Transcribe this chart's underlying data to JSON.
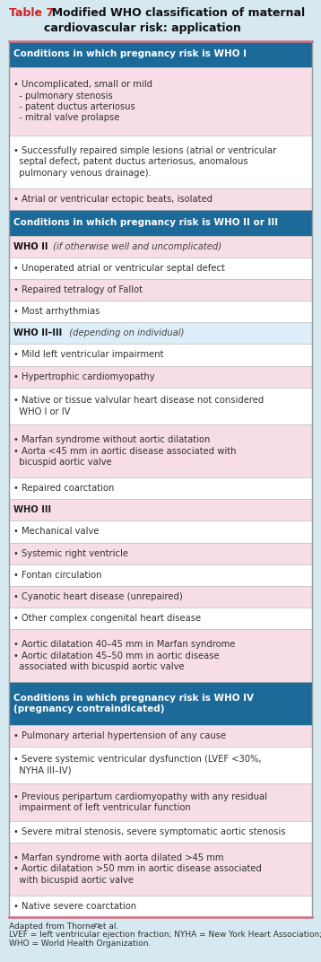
{
  "bg_color": "#d6e8f0",
  "title_prefix": "Table 7",
  "title_rest": "  Modified WHO classification of maternal\ncardiovascular risk: application",
  "table_border_color": "#c0c0c0",
  "top_bottom_line_color": "#d07080",
  "rows": [
    {
      "type": "section_header",
      "text": "Conditions in which pregnancy risk is WHO I",
      "bg": "#1b6a9a",
      "fg": "#ffffff",
      "lines": 1
    },
    {
      "type": "cell",
      "text": "• Uncomplicated, small or mild\n  - pulmonary stenosis\n  - patent ductus arteriosus\n  - mitral valve prolapse",
      "bg": "#f7dde6",
      "fg": "#333333",
      "lines": 4
    },
    {
      "type": "cell",
      "text": "• Successfully repaired simple lesions (atrial or ventricular\n  septal defect, patent ductus arteriosus, anomalous\n  pulmonary venous drainage).",
      "bg": "#ffffff",
      "fg": "#333333",
      "lines": 3
    },
    {
      "type": "cell",
      "text": "• Atrial or ventricular ectopic beats, isolated",
      "bg": "#f7dde6",
      "fg": "#333333",
      "lines": 1
    },
    {
      "type": "section_header",
      "text": "Conditions in which pregnancy risk is WHO II or III",
      "bg": "#1b6a9a",
      "fg": "#ffffff",
      "lines": 1
    },
    {
      "type": "mixed",
      "bold": "WHO II",
      "italic": " (if otherwise well and uncomplicated)",
      "bg": "#f7dde6",
      "fg": "#333333",
      "lines": 1
    },
    {
      "type": "cell",
      "text": "• Unoperated atrial or ventricular septal defect",
      "bg": "#ffffff",
      "fg": "#333333",
      "lines": 1
    },
    {
      "type": "cell",
      "text": "• Repaired tetralogy of Fallot",
      "bg": "#f7dde6",
      "fg": "#333333",
      "lines": 1
    },
    {
      "type": "cell",
      "text": "• Most arrhythmias",
      "bg": "#ffffff",
      "fg": "#333333",
      "lines": 1
    },
    {
      "type": "mixed",
      "bold": "WHO II–III",
      "italic": "  (depending on individual)",
      "bg": "#ddeef8",
      "fg": "#333333",
      "lines": 1
    },
    {
      "type": "cell",
      "text": "• Mild left ventricular impairment",
      "bg": "#ffffff",
      "fg": "#333333",
      "lines": 1
    },
    {
      "type": "cell",
      "text": "• Hypertrophic cardiomyopathy",
      "bg": "#f7dde6",
      "fg": "#333333",
      "lines": 1
    },
    {
      "type": "cell",
      "text": "• Native or tissue valvular heart disease not considered\n  WHO I or IV",
      "bg": "#ffffff",
      "fg": "#333333",
      "lines": 2
    },
    {
      "type": "cell",
      "text": "• Marfan syndrome without aortic dilatation\n• Aorta <45 mm in aortic disease associated with\n  bicuspid aortic valve",
      "bg": "#f7dde6",
      "fg": "#333333",
      "lines": 3
    },
    {
      "type": "cell",
      "text": "• Repaired coarctation",
      "bg": "#ffffff",
      "fg": "#333333",
      "lines": 1
    },
    {
      "type": "subheader",
      "text": "WHO III",
      "bg": "#f7dde6",
      "fg": "#333333",
      "lines": 1
    },
    {
      "type": "cell",
      "text": "• Mechanical valve",
      "bg": "#ffffff",
      "fg": "#333333",
      "lines": 1
    },
    {
      "type": "cell",
      "text": "• Systemic right ventricle",
      "bg": "#f7dde6",
      "fg": "#333333",
      "lines": 1
    },
    {
      "type": "cell",
      "text": "• Fontan circulation",
      "bg": "#ffffff",
      "fg": "#333333",
      "lines": 1
    },
    {
      "type": "cell",
      "text": "• Cyanotic heart disease (unrepaired)",
      "bg": "#f7dde6",
      "fg": "#333333",
      "lines": 1
    },
    {
      "type": "cell",
      "text": "• Other complex congenital heart disease",
      "bg": "#ffffff",
      "fg": "#333333",
      "lines": 1
    },
    {
      "type": "cell",
      "text": "• Aortic dilatation 40–45 mm in Marfan syndrome\n• Aortic dilatation 45–50 mm in aortic disease\n  associated with bicuspid aortic valve",
      "bg": "#f7dde6",
      "fg": "#333333",
      "lines": 3
    },
    {
      "type": "section_header",
      "text": "Conditions in which pregnancy risk is WHO IV\n(pregnancy contraindicated)",
      "bg": "#1b6a9a",
      "fg": "#ffffff",
      "lines": 2
    },
    {
      "type": "cell",
      "text": "• Pulmonary arterial hypertension of any cause",
      "bg": "#f7dde6",
      "fg": "#333333",
      "lines": 1
    },
    {
      "type": "cell",
      "text": "• Severe systemic ventricular dysfunction (LVEF <30%,\n  NYHA III–IV)",
      "bg": "#ffffff",
      "fg": "#333333",
      "lines": 2
    },
    {
      "type": "cell",
      "text": "• Previous peripartum cardiomyopathy with any residual\n  impairment of left ventricular function",
      "bg": "#f7dde6",
      "fg": "#333333",
      "lines": 2
    },
    {
      "type": "cell",
      "text": "• Severe mitral stenosis, severe symptomatic aortic stenosis",
      "bg": "#ffffff",
      "fg": "#333333",
      "lines": 1
    },
    {
      "type": "cell",
      "text": "• Marfan syndrome with aorta dilated >45 mm\n• Aortic dilatation >50 mm in aortic disease associated\n  with bicuspid aortic valve",
      "bg": "#f7dde6",
      "fg": "#333333",
      "lines": 3
    },
    {
      "type": "cell",
      "text": "• Native severe coarctation",
      "bg": "#ffffff",
      "fg": "#333333",
      "lines": 1
    }
  ],
  "footnote_lines": [
    {
      "text": "Adapted from Thorne et al.",
      "sup": "73"
    },
    {
      "text": "LVEF = left ventricular ejection fraction; NYHA = New York Heart Association;"
    },
    {
      "text": "WHO = World Health Organization."
    }
  ]
}
